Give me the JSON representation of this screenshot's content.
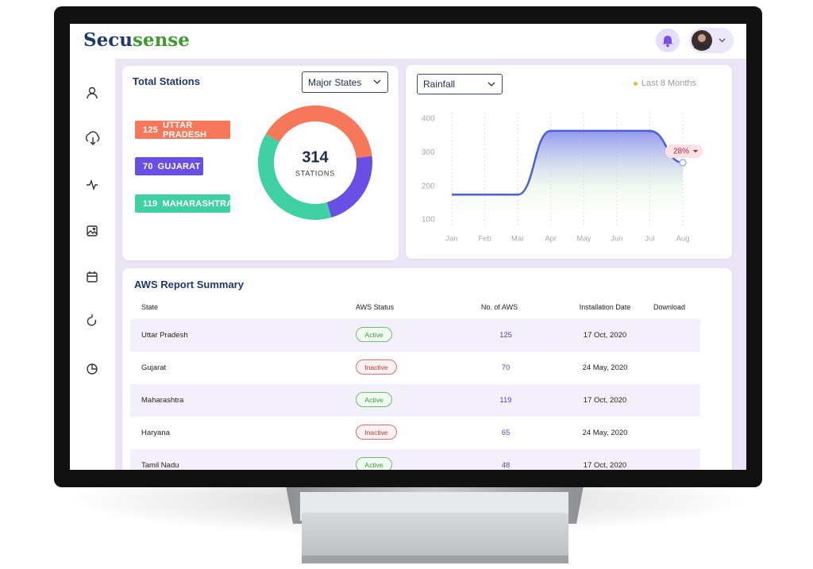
{
  "header": {
    "brand_first": "Secu",
    "brand_second": "sense"
  },
  "chart_data": [
    {
      "type": "pie",
      "title": "Total Stations",
      "control": "Major States",
      "categories": [
        "UTTAR PRADESH",
        "GUJARAT",
        "MAHARASHTRA"
      ],
      "values": [
        125,
        70,
        119
      ],
      "colors": [
        "#f6775a",
        "#6a4fe4",
        "#3fd1a4"
      ],
      "center_value": 314,
      "center_label": "STATIONS"
    },
    {
      "type": "line",
      "control": "Rainfall",
      "legend": "Last 8 Months",
      "categories": [
        "Jan",
        "Feb",
        "Mar",
        "Apr",
        "May",
        "Jun",
        "Jul",
        "Aug"
      ],
      "values": [
        175,
        175,
        175,
        365,
        365,
        365,
        365,
        270
      ],
      "color": "#4b5fd6",
      "ylim": [
        100,
        400
      ],
      "yticks": [
        100,
        200,
        300,
        400
      ],
      "annotation": "28%"
    }
  ],
  "table": {
    "title": "AWS Report Summary",
    "columns": [
      "State",
      "AWS Status",
      "No. of AWS",
      "Installation Date",
      "Download"
    ],
    "rows": [
      [
        "Uttar Pradesh",
        "Active",
        125,
        "17 Oct, 2020"
      ],
      [
        "Gujarat",
        "Inactive",
        70,
        "24 May, 2020"
      ],
      [
        "Maharashtra",
        "Active",
        119,
        "17 Oct, 2020"
      ],
      [
        "Haryana",
        "Inactive",
        65,
        "24 May, 2020"
      ],
      [
        "Tamil Nadu",
        "Active",
        48,
        "17 Oct, 2020"
      ]
    ]
  }
}
